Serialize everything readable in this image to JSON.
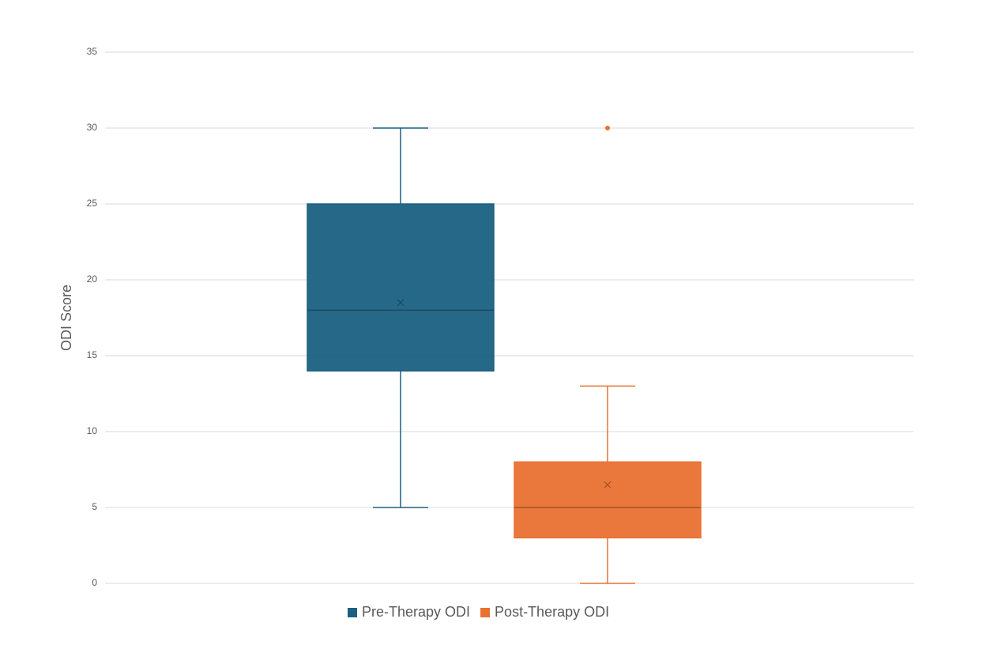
{
  "chart_data": {
    "type": "box",
    "y_label": "ODI Score",
    "ylim": [
      0,
      35
    ],
    "yticks": [
      0,
      5,
      10,
      15,
      20,
      25,
      30,
      35
    ],
    "grid": true,
    "legend": "bottom",
    "series": [
      {
        "name": "Pre-Therapy ODI",
        "color": "#1a6082",
        "min": 5,
        "q1": 14,
        "median": 18,
        "q3": 25,
        "max": 30,
        "mean": 18.5,
        "outliers": []
      },
      {
        "name": "Post-Therapy ODI",
        "color": "#e97132",
        "min": 0,
        "q1": 3,
        "median": 5,
        "q3": 8,
        "max": 13,
        "mean": 6.5,
        "outliers": [
          30
        ]
      }
    ]
  }
}
